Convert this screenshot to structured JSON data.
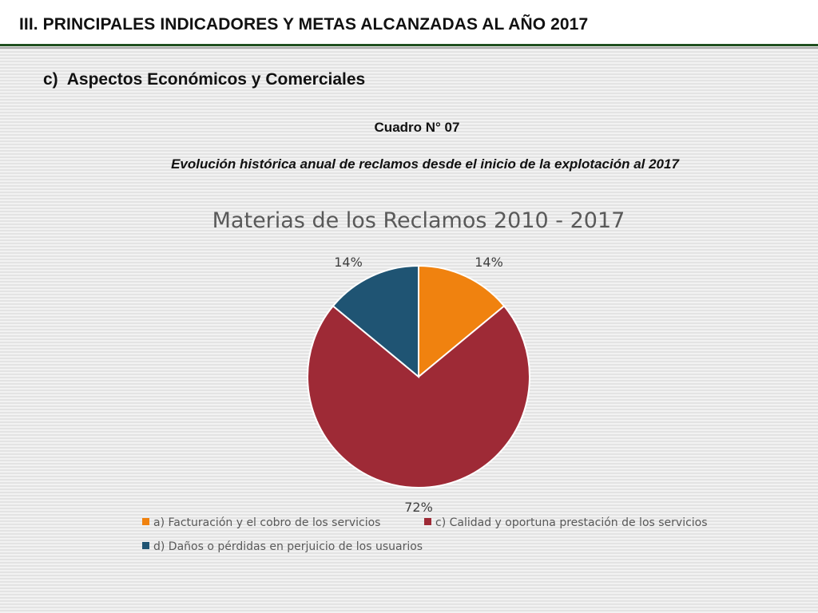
{
  "header": {
    "title": "III. PRINCIPALES INDICADORES Y METAS ALCANZADAS AL AÑO 2017"
  },
  "section": {
    "letter": "c)",
    "title": "Aspectos Económicos y Comerciales"
  },
  "table": {
    "number": "Cuadro N° 07",
    "caption": "Evolución histórica anual de reclamos desde el inicio de la explotación al 2017"
  },
  "chart_data": {
    "type": "pie",
    "title": "Materias de los Reclamos 2010 - 2017",
    "slices": [
      {
        "name": "a) Facturación y el cobro de los servicios",
        "value": 14,
        "label": "14%",
        "color": "#f0820f"
      },
      {
        "name": "c) Calidad y oportuna prestación de los servicios",
        "value": 72,
        "label": "72%",
        "color": "#9e2a36"
      },
      {
        "name": "d) Daños o pérdidas en perjuicio de los usuarios",
        "value": 14,
        "label": "14%",
        "color": "#1f5473"
      }
    ],
    "legend_position": "bottom"
  }
}
